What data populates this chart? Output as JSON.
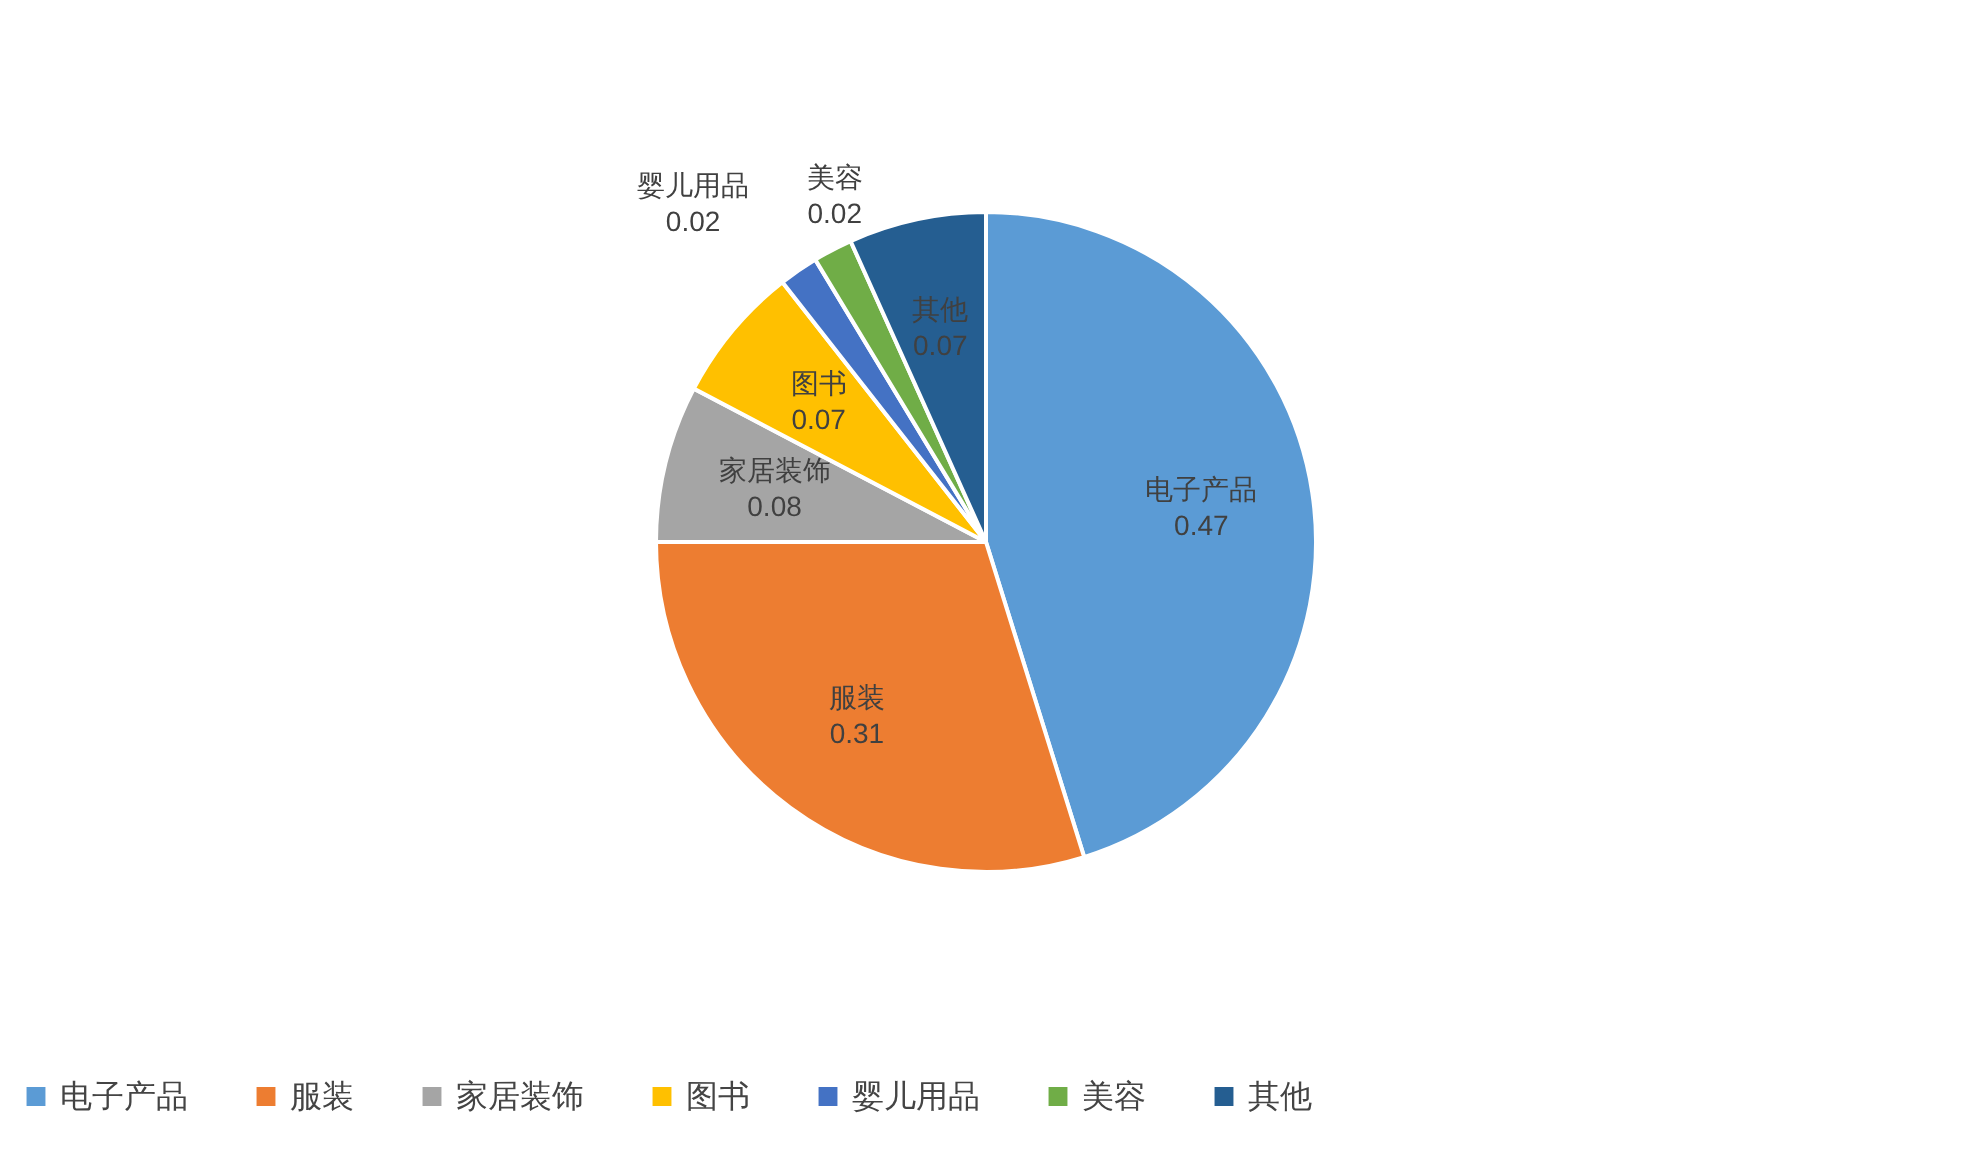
{
  "chart_data": {
    "type": "pie",
    "categories": [
      "电子产品",
      "服装",
      "家居装饰",
      "图书",
      "婴儿用品",
      "美容",
      "其他"
    ],
    "values": [
      0.47,
      0.31,
      0.08,
      0.07,
      0.02,
      0.02,
      0.07
    ],
    "colors": [
      "#5b9bd5",
      "#ed7d31",
      "#a5a5a5",
      "#ffc000",
      "#4472c4",
      "#70ad47",
      "#255e91"
    ],
    "data_labels": true,
    "legend": "bottom"
  }
}
